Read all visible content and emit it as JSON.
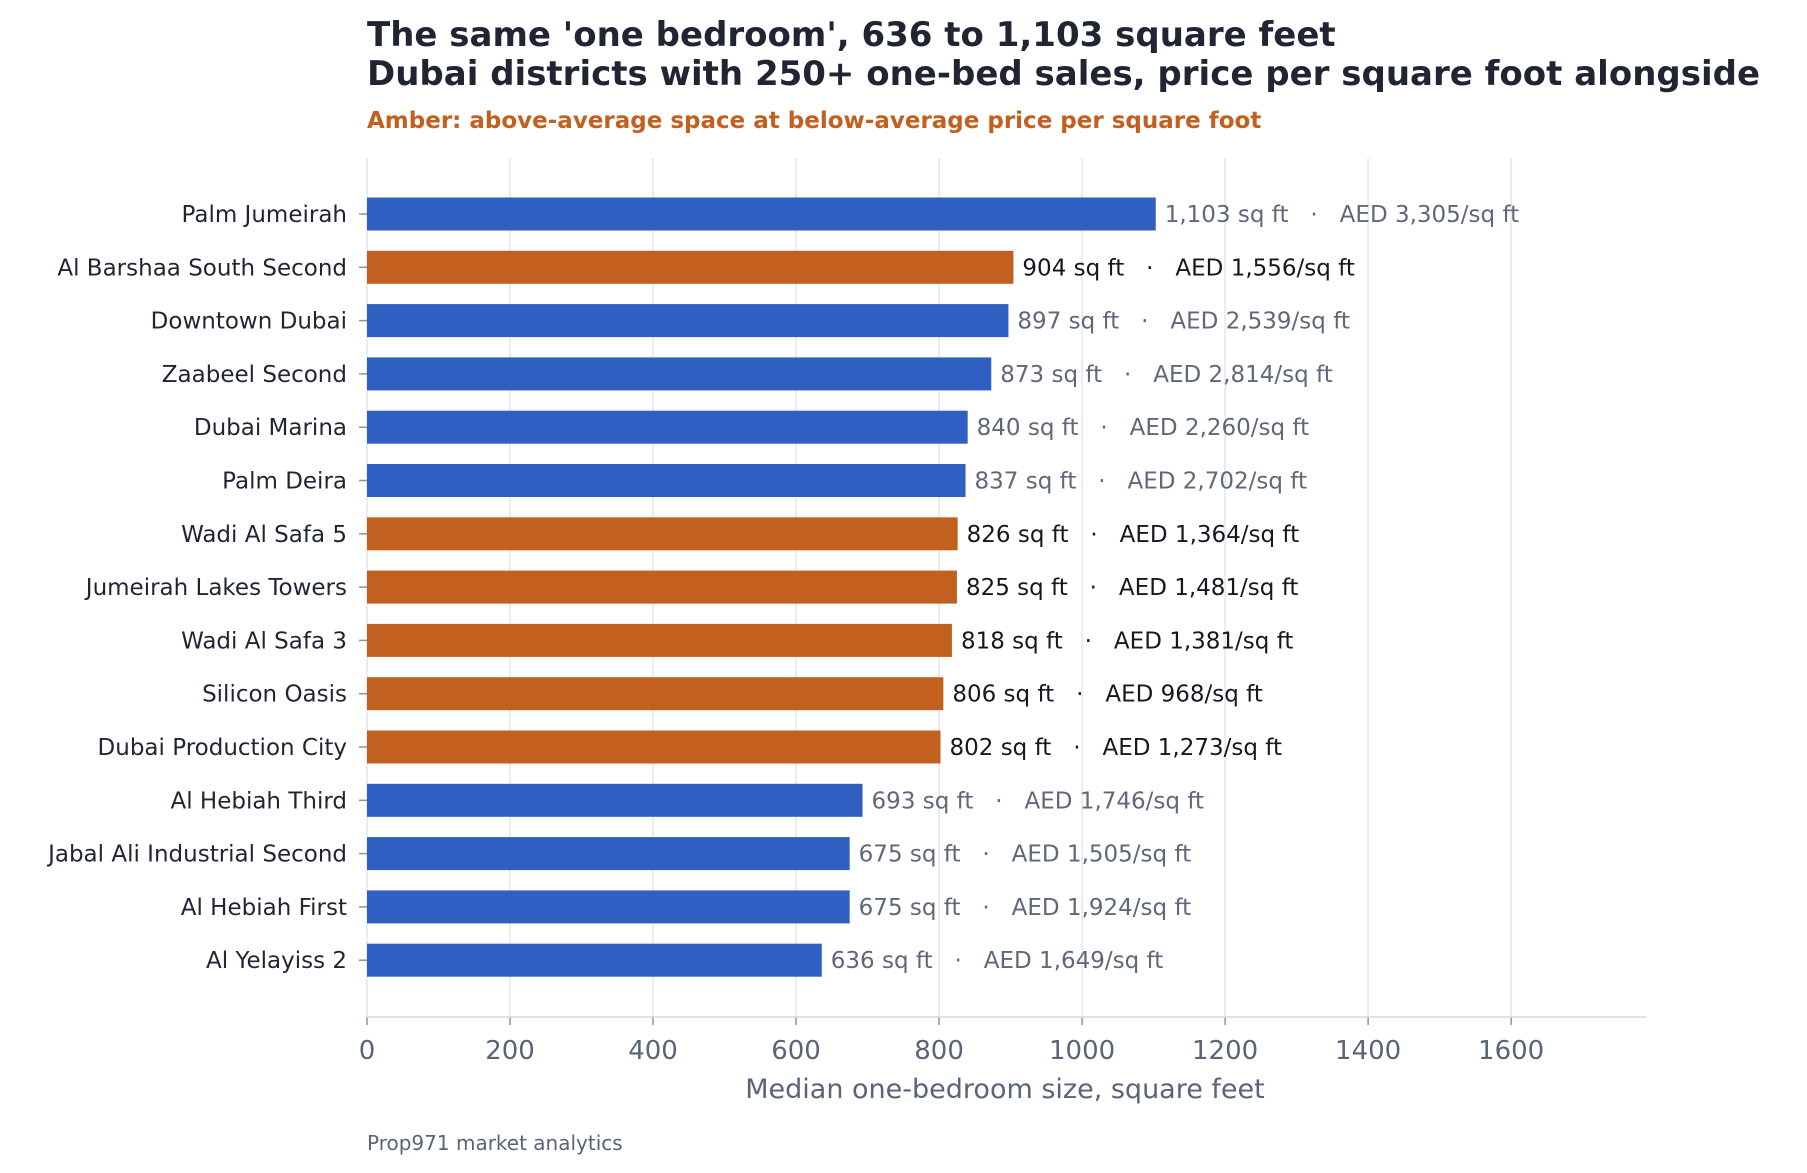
{
  "chart_data": {
    "type": "bar",
    "orientation": "horizontal",
    "title_lines": [
      "The same 'one bedroom', 636 to 1,103 square feet",
      "Dubai districts with 250+ one-bed sales, price per square foot alongside"
    ],
    "subtitle": "Amber: above-average space at below-average price per square foot",
    "xlabel": "Median one-bedroom size, square feet",
    "source": "Prop971 market analytics",
    "xlim": [
      0,
      1790
    ],
    "xticks": [
      0,
      200,
      400,
      600,
      800,
      1000,
      1200,
      1400,
      1600
    ],
    "grid": "vertical",
    "legend": "none",
    "colors": {
      "highlight": "#c2601f",
      "default": "#2f5fc1"
    },
    "categories": [
      "Palm Jumeirah",
      "Al Barshaa South Second",
      "Downtown Dubai",
      "Zaabeel Second",
      "Dubai Marina",
      "Palm Deira",
      "Wadi Al Safa 5",
      "Jumeirah Lakes Towers",
      "Wadi Al Safa 3",
      "Silicon Oasis",
      "Dubai Production City",
      "Al Hebiah Third",
      "Jabal Ali Industrial Second",
      "Al Hebiah First",
      "Al Yelayiss 2"
    ],
    "values": [
      1103,
      904,
      897,
      873,
      840,
      837,
      826,
      825,
      818,
      806,
      802,
      693,
      675,
      675,
      636
    ],
    "highlighted": [
      false,
      true,
      false,
      false,
      false,
      false,
      true,
      true,
      true,
      true,
      true,
      false,
      false,
      false,
      false
    ],
    "data_labels": [
      "1,103 sq ft   ·   AED 3,305/sq ft",
      "904 sq ft   ·   AED 1,556/sq ft",
      "897 sq ft   ·   AED 2,539/sq ft",
      "873 sq ft   ·   AED 2,814/sq ft",
      "840 sq ft   ·   AED 2,260/sq ft",
      "837 sq ft   ·   AED 2,702/sq ft",
      "826 sq ft   ·   AED 1,364/sq ft",
      "825 sq ft   ·   AED 1,481/sq ft",
      "818 sq ft   ·   AED 1,381/sq ft",
      "806 sq ft   ·   AED 968/sq ft",
      "802 sq ft   ·   AED 1,273/sq ft",
      "693 sq ft   ·   AED 1,746/sq ft",
      "675 sq ft   ·   AED 1,505/sq ft",
      "675 sq ft   ·   AED 1,924/sq ft",
      "636 sq ft   ·   AED 1,649/sq ft"
    ]
  }
}
